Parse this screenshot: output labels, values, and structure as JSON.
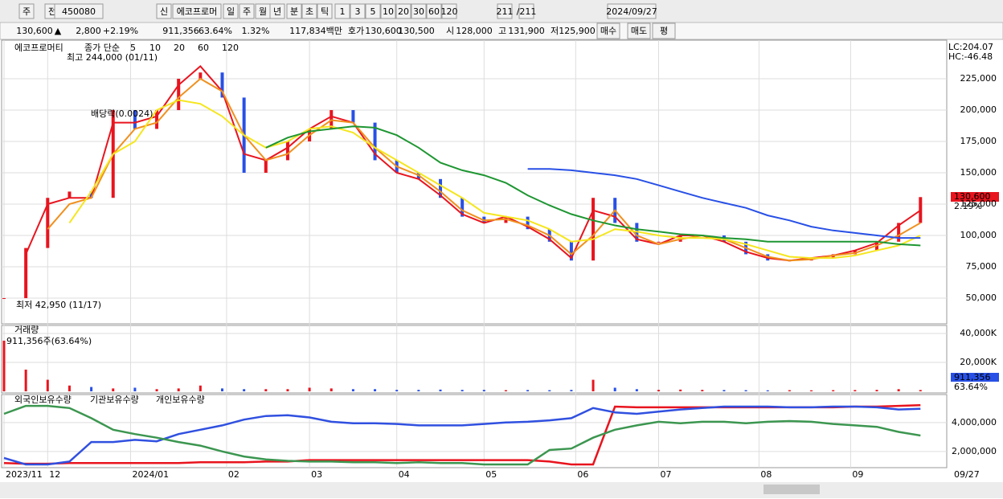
{
  "toolbar": [
    "주",
    "전",
    "450080",
    "신",
    "에코프로머",
    "일",
    "주",
    "월",
    "년",
    "분",
    "초",
    "틱",
    "1",
    "3",
    "5",
    "10",
    "20",
    "30",
    "60",
    "120",
    "211",
    "/211",
    "2024/09/27"
  ],
  "info": [
    "130,600",
    "▲",
    "2,800",
    "+2.19%",
    "911,356",
    "63.64%",
    "1.32%",
    "117,834백만",
    "호가",
    "130,600",
    "130,500",
    "시",
    "128,000",
    "고",
    "131,900",
    "저",
    "125,900",
    "매수",
    "매도",
    "평"
  ],
  "chart_data": [
    {
      "type": "candlestick",
      "title": "에코프로머티",
      "legend_title": "종가 단순",
      "x": [
        0,
        5,
        10,
        15,
        20,
        25,
        30,
        35,
        40,
        45,
        50,
        55,
        60,
        65,
        70,
        75,
        80,
        85,
        90,
        95,
        100,
        105,
        110,
        115,
        120,
        125,
        130,
        135,
        140,
        145,
        150,
        155,
        160,
        165,
        170,
        175,
        180,
        185,
        190,
        195,
        200,
        205,
        210
      ],
      "close": [
        50000,
        90000,
        130000,
        135000,
        130000,
        200000,
        185000,
        200000,
        225000,
        230000,
        210000,
        150000,
        160000,
        175000,
        185000,
        200000,
        190000,
        160000,
        150000,
        145000,
        130000,
        115000,
        110000,
        115000,
        105000,
        95000,
        80000,
        130000,
        110000,
        95000,
        95000,
        100000,
        100000,
        95000,
        85000,
        80000,
        80000,
        82000,
        85000,
        88000,
        95000,
        110000,
        130600
      ],
      "up_color": "#e8141e",
      "down_color": "#2850e6",
      "series": [
        {
          "name": "5",
          "color": "#e8141e",
          "values": [
            null,
            85000,
            125000,
            130000,
            130000,
            190000,
            190000,
            195000,
            220000,
            235000,
            215000,
            165000,
            160000,
            170000,
            185000,
            195000,
            190000,
            165000,
            150000,
            145000,
            132000,
            117000,
            110000,
            115000,
            107000,
            97000,
            82000,
            120000,
            115000,
            97000,
            93000,
            100000,
            100000,
            95000,
            87000,
            82000,
            80000,
            82000,
            84000,
            88000,
            94000,
            108000,
            120000
          ]
        },
        {
          "name": "10",
          "color": "#f0901e",
          "values": [
            null,
            null,
            105000,
            125000,
            130000,
            165000,
            185000,
            190000,
            210000,
            225000,
            215000,
            180000,
            160000,
            165000,
            180000,
            192000,
            190000,
            170000,
            155000,
            148000,
            135000,
            120000,
            112000,
            113000,
            108000,
            100000,
            85000,
            100000,
            120000,
            100000,
            93000,
            97000,
            100000,
            97000,
            90000,
            83000,
            80000,
            81000,
            84000,
            86000,
            92000,
            100000,
            110000
          ]
        },
        {
          "name": "20",
          "color": "#f5e61e",
          "values": [
            null,
            null,
            null,
            110000,
            135000,
            165000,
            175000,
            200000,
            208000,
            205000,
            195000,
            180000,
            170000,
            175000,
            185000,
            187000,
            182000,
            170000,
            160000,
            150000,
            140000,
            130000,
            118000,
            115000,
            112000,
            105000,
            95000,
            97000,
            105000,
            103000,
            100000,
            98000,
            98000,
            97000,
            93000,
            88000,
            83000,
            82000,
            82000,
            84000,
            88000,
            92000,
            100000
          ]
        },
        {
          "name": "60",
          "color": "#1e9632",
          "values": [
            null,
            null,
            null,
            null,
            null,
            null,
            null,
            null,
            null,
            null,
            null,
            null,
            170000,
            178000,
            183000,
            185000,
            187000,
            186000,
            180000,
            170000,
            158000,
            152000,
            148000,
            142000,
            132000,
            124000,
            117000,
            112000,
            108000,
            105000,
            103000,
            101000,
            100000,
            98000,
            97000,
            95000,
            95000,
            95000,
            95000,
            95000,
            95000,
            93000,
            92000
          ]
        },
        {
          "name": "120",
          "color": "#2850e6",
          "values": [
            null,
            null,
            null,
            null,
            null,
            null,
            null,
            null,
            null,
            null,
            null,
            null,
            null,
            null,
            null,
            null,
            null,
            null,
            null,
            null,
            null,
            null,
            null,
            null,
            153000,
            153000,
            152000,
            150000,
            148000,
            145000,
            140000,
            135000,
            130000,
            126000,
            122000,
            116000,
            112000,
            107000,
            104000,
            102000,
            100000,
            98000,
            98000
          ]
        }
      ],
      "ylim": [
        29500,
        254500
      ],
      "yticks": [
        {
          "value": 225000,
          "label": "225,000"
        },
        {
          "value": 200000,
          "label": "200,000"
        },
        {
          "value": 175000,
          "label": "175,000"
        },
        {
          "value": 150000,
          "label": "150,000"
        },
        {
          "value": 125000,
          "label": "125,000"
        },
        {
          "value": 100000,
          "label": "100,000"
        },
        {
          "value": 75000,
          "label": "75,000"
        },
        {
          "value": 50000,
          "label": "50,000"
        }
      ],
      "high_label": "최고 244,000 (01/11)",
      "low_label": "최저 42,950 (11/17)",
      "dividend_label": "배당락(0.0024)",
      "right_labels": [
        "LC:204.07",
        "HC:-46.48"
      ],
      "last_price": "130,600",
      "last_change": "2.19%"
    },
    {
      "type": "bar",
      "title": "거래량",
      "subtitle": "911,356주(63.64%)",
      "color": "#e8141e",
      "x": [
        0,
        5,
        10,
        15,
        20,
        25,
        30,
        35,
        40,
        45,
        50,
        55,
        60,
        65,
        70,
        75,
        80,
        85,
        90,
        95,
        100,
        105,
        110,
        115,
        120,
        125,
        130,
        135,
        140,
        145,
        150,
        155,
        160,
        165,
        170,
        175,
        180,
        185,
        190,
        195,
        200,
        205,
        210
      ],
      "values": [
        35000,
        15000,
        8000,
        4000,
        3000,
        2000,
        2500,
        1500,
        2000,
        4000,
        2000,
        1500,
        1500,
        1500,
        2500,
        2000,
        1500,
        1500,
        1000,
        1000,
        1200,
        1000,
        1000,
        800,
        900,
        800,
        1000,
        8000,
        2500,
        1500,
        1000,
        1200,
        1000,
        900,
        800,
        700,
        800,
        700,
        800,
        900,
        1000,
        1500,
        911.356
      ],
      "ylim": [
        0,
        45000
      ],
      "yticks": [
        {
          "value": 40000,
          "label": "40,000K"
        },
        {
          "value": 20000,
          "label": "20,000K"
        }
      ],
      "right_labels": [
        "911,356",
        "63.64%"
      ]
    },
    {
      "type": "line",
      "x": [
        0,
        5,
        10,
        15,
        20,
        25,
        30,
        35,
        40,
        45,
        50,
        55,
        60,
        65,
        70,
        75,
        80,
        85,
        90,
        95,
        100,
        105,
        110,
        115,
        120,
        125,
        130,
        135,
        140,
        145,
        150,
        155,
        160,
        165,
        170,
        175,
        180,
        185,
        190,
        195,
        200,
        205,
        210
      ],
      "series": [
        {
          "name": "외국인보유수량",
          "color": "#e8141e",
          "values": [
            1200000,
            1150000,
            1150000,
            1200000,
            1200000,
            1200000,
            1200000,
            1200000,
            1200000,
            1250000,
            1250000,
            1250000,
            1300000,
            1300000,
            1400000,
            1400000,
            1400000,
            1400000,
            1400000,
            1400000,
            1400000,
            1400000,
            1400000,
            1400000,
            1400000,
            1300000,
            1100000,
            1100000,
            5100000,
            5050000,
            5050000,
            5050000,
            5050000,
            5050000,
            5050000,
            5050000,
            5050000,
            5050000,
            5050000,
            5100000,
            5100000,
            5150000,
            5200000
          ]
        },
        {
          "name": "기관보유수량",
          "color": "#3050e0",
          "values": [
            1550000,
            1100000,
            1100000,
            1300000,
            2650000,
            2650000,
            2800000,
            2700000,
            3200000,
            3500000,
            3800000,
            4200000,
            4450000,
            4500000,
            4350000,
            4050000,
            3950000,
            3950000,
            3900000,
            3800000,
            3800000,
            3800000,
            3900000,
            4000000,
            4050000,
            4150000,
            4300000,
            5000000,
            4700000,
            4600000,
            4750000,
            4900000,
            5000000,
            5100000,
            5100000,
            5100000,
            5050000,
            5050000,
            5100000,
            5100000,
            5050000,
            4900000,
            4950000
          ]
        },
        {
          "name": "개인보유수량",
          "color": "#3c9650",
          "values": [
            4600000,
            5150000,
            5150000,
            5000000,
            4300000,
            3500000,
            3200000,
            2950000,
            2650000,
            2400000,
            2000000,
            1650000,
            1450000,
            1350000,
            1300000,
            1300000,
            1250000,
            1250000,
            1200000,
            1250000,
            1200000,
            1200000,
            1100000,
            1100000,
            1100000,
            2100000,
            2200000,
            2950000,
            3500000,
            3800000,
            4050000,
            3950000,
            4050000,
            4050000,
            3950000,
            4050000,
            4100000,
            4050000,
            3900000,
            3800000,
            3700000,
            3350000,
            3100000
          ]
        }
      ],
      "ylim": [
        880000,
        5880000
      ],
      "yticks": [
        {
          "value": 4000000,
          "label": "4,000,000"
        },
        {
          "value": 2000000,
          "label": "2,000,000"
        }
      ],
      "xticks": [
        {
          "value": 0,
          "label": "2023/11"
        },
        {
          "value": 10,
          "label": "12"
        },
        {
          "value": 29,
          "label": "2024/01"
        },
        {
          "value": 51,
          "label": "02"
        },
        {
          "value": 70,
          "label": "03"
        },
        {
          "value": 90,
          "label": "04"
        },
        {
          "value": 110,
          "label": "05"
        },
        {
          "value": 131,
          "label": "06"
        },
        {
          "value": 150,
          "label": "07"
        },
        {
          "value": 173,
          "label": "08"
        },
        {
          "value": 194,
          "label": "09"
        }
      ],
      "end_label": "09/27"
    }
  ]
}
